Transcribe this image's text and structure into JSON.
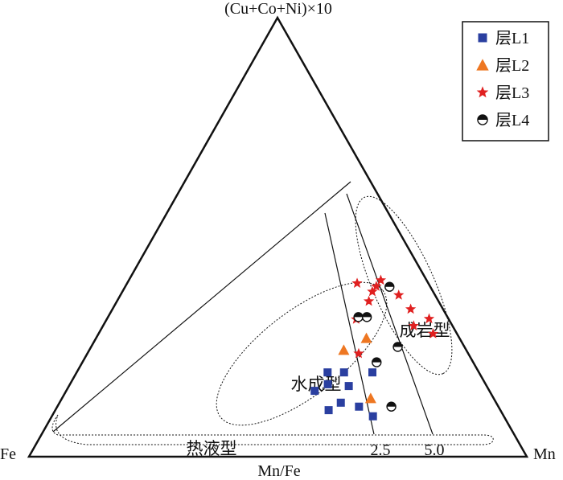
{
  "chart_data": {
    "type": "ternary",
    "apex_labels": {
      "top": "(Cu+Co+Ni)×10",
      "left": "Fe",
      "right": "Mn"
    },
    "axis_label": "Mn/Fe",
    "ratio_lines": [
      {
        "label": "2.5",
        "value": 2.5
      },
      {
        "label": "5.0",
        "value": 5.0
      }
    ],
    "fields": {
      "hydrogenetic": "水成型",
      "diagenetic": "成岩型",
      "hydrothermal": "热液型"
    },
    "legend_position": "top-right",
    "series": [
      {
        "name": "层L1",
        "marker": "square",
        "color": "#2a3fa0",
        "points": [
          {
            "cuconi": 15.0,
            "fe": 35.1,
            "mn": 49.9
          },
          {
            "cuconi": 16.5,
            "fe": 31.7,
            "mn": 51.8
          },
          {
            "cuconi": 19.2,
            "fe": 30.4,
            "mn": 50.4
          },
          {
            "cuconi": 10.6,
            "fe": 34.5,
            "mn": 54.9
          },
          {
            "cuconi": 12.3,
            "fe": 31.2,
            "mn": 56.5
          },
          {
            "cuconi": 19.2,
            "fe": 27.1,
            "mn": 53.7
          },
          {
            "cuconi": 16.1,
            "fe": 27.7,
            "mn": 56.2
          },
          {
            "cuconi": 19.2,
            "fe": 21.4,
            "mn": 59.4
          },
          {
            "cuconi": 11.4,
            "fe": 28.0,
            "mn": 60.6
          },
          {
            "cuconi": 9.2,
            "fe": 26.3,
            "mn": 64.5
          }
        ]
      },
      {
        "name": "层L2",
        "marker": "triangle",
        "color": "#ee7722",
        "points": [
          {
            "cuconi": 24.3,
            "fe": 24.6,
            "mn": 51.1
          },
          {
            "cuconi": 27.0,
            "fe": 18.7,
            "mn": 54.3
          },
          {
            "cuconi": 13.3,
            "fe": 24.7,
            "mn": 62.0
          }
        ]
      },
      {
        "name": "层L3",
        "marker": "star",
        "color": "#e02020",
        "points": [
          {
            "cuconi": 23.5,
            "fe": 22.0,
            "mn": 54.5
          },
          {
            "cuconi": 31.3,
            "fe": 18.6,
            "mn": 50.1
          },
          {
            "cuconi": 35.4,
            "fe": 14.0,
            "mn": 50.6
          },
          {
            "cuconi": 39.5,
            "fe": 14.3,
            "mn": 46.2
          },
          {
            "cuconi": 37.6,
            "fe": 12.2,
            "mn": 50.2
          },
          {
            "cuconi": 38.8,
            "fe": 10.8,
            "mn": 50.4
          },
          {
            "cuconi": 40.2,
            "fe": 9.2,
            "mn": 50.6
          },
          {
            "cuconi": 36.8,
            "fe": 7.3,
            "mn": 55.9
          },
          {
            "cuconi": 33.6,
            "fe": 6.5,
            "mn": 59.9
          },
          {
            "cuconi": 29.8,
            "fe": 7.8,
            "mn": 62.4
          },
          {
            "cuconi": 28.0,
            "fe": 4.8,
            "mn": 67.2
          },
          {
            "cuconi": 31.4,
            "fe": 3.9,
            "mn": 64.7
          }
        ]
      },
      {
        "name": "层L4",
        "marker": "half-circle",
        "color": "#111111",
        "points": [
          {
            "cuconi": 38.7,
            "fe": 8.2,
            "mn": 53.1
          },
          {
            "cuconi": 31.8,
            "fe": 17.9,
            "mn": 50.3
          },
          {
            "cuconi": 31.8,
            "fe": 16.2,
            "mn": 52.0
          },
          {
            "cuconi": 25.0,
            "fe": 13.4,
            "mn": 61.6
          },
          {
            "cuconi": 21.5,
            "fe": 19.4,
            "mn": 59.1
          },
          {
            "cuconi": 11.4,
            "fe": 21.5,
            "mn": 67.1
          }
        ]
      }
    ]
  }
}
